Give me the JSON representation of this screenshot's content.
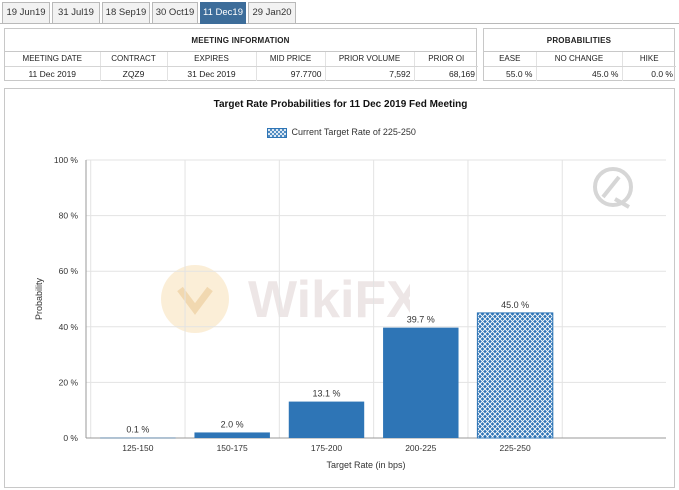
{
  "tabs": [
    {
      "label": "19 Jun19",
      "active": false
    },
    {
      "label": "31 Jul19",
      "active": false
    },
    {
      "label": "18 Sep19",
      "active": false
    },
    {
      "label": "30 Oct19",
      "active": false
    },
    {
      "label": "11 Dec19",
      "active": true
    },
    {
      "label": "29 Jan20",
      "active": false
    }
  ],
  "meeting_info": {
    "title": "MEETING INFORMATION",
    "headers": [
      "MEETING DATE",
      "CONTRACT",
      "EXPIRES",
      "MID PRICE",
      "PRIOR VOLUME",
      "PRIOR OI"
    ],
    "row": [
      "11 Dec 2019",
      "ZQZ9",
      "31 Dec 2019",
      "97.7700",
      "7,592",
      "68,169"
    ]
  },
  "probabilities": {
    "title": "PROBABILITIES",
    "headers": [
      "EASE",
      "NO CHANGE",
      "HIKE"
    ],
    "row": [
      "55.0 %",
      "45.0 %",
      "0.0 %"
    ]
  },
  "watermark": {
    "text": "WikiFX"
  },
  "colors": {
    "bar": "#2e75b6",
    "tab_active": "#3d6d9a",
    "grid": "#e3e3e3"
  },
  "chart_data": {
    "type": "bar",
    "title": "Target Rate Probabilities for 11 Dec 2019 Fed Meeting",
    "legend": [
      "Current Target Rate of 225-250"
    ],
    "legend_position": "top-center",
    "xlabel": "Target Rate (in bps)",
    "ylabel": "Probability",
    "categories": [
      "125-150",
      "150-175",
      "175-200",
      "200-225",
      "225-250"
    ],
    "values": [
      0.1,
      2.0,
      13.1,
      39.7,
      45.0
    ],
    "data_labels": [
      "0.1 %",
      "2.0 %",
      "13.1 %",
      "39.7 %",
      "45.0 %"
    ],
    "highlighted_category": "225-250",
    "ylim": [
      0,
      100
    ],
    "yticks": [
      0,
      20,
      40,
      60,
      80,
      100
    ],
    "ytick_labels": [
      "0 %",
      "20 %",
      "40 %",
      "60 %",
      "80 %",
      "100 %"
    ],
    "grid": true
  }
}
